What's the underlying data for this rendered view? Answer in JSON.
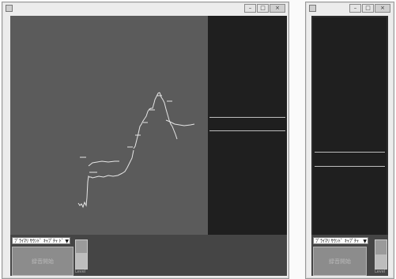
{
  "window_main": {
    "device_select_label": "ﾌﾟﾗｲﾏﾘ ｻｳﾝﾄﾞ ｷｬﾌﾟﾁｬ ﾄﾞ",
    "record_button_label": "録音開始",
    "level_label": "Level",
    "level_fraction": 0.55
  },
  "window_small": {
    "device_select_label": "ﾌﾟﾗｲﾏﾘ ｻｳﾝﾄﾞ ｷｬﾌﾟﾁｬ",
    "record_button_label": "録音開始",
    "level_label": "Level",
    "level_fraction": 0.5
  },
  "icons": {
    "minimize": "minimize-icon",
    "maximize": "maximize-icon",
    "close": "close-icon"
  },
  "colors": {
    "waveform_bg": "#5b5b5b",
    "spectrum_bg": "#1f1f1f",
    "trace": "#e6e6e6"
  }
}
